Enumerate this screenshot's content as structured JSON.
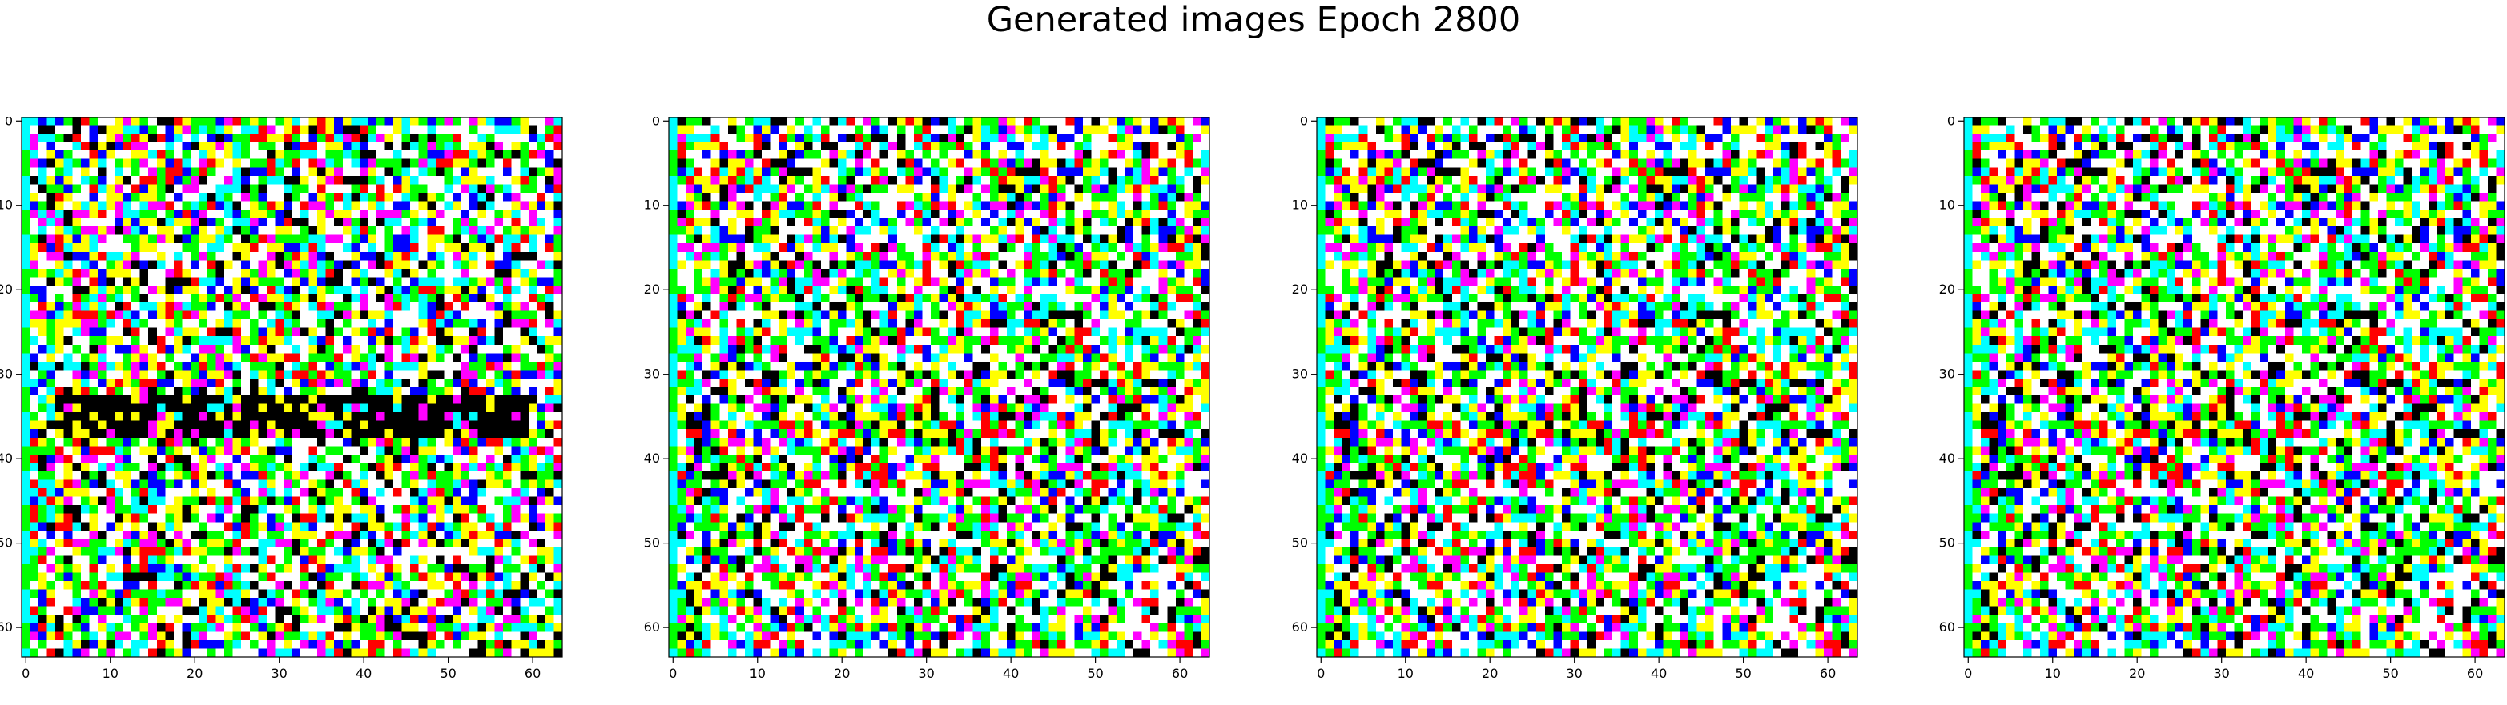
{
  "figure": {
    "title": "Generated images Epoch 2800"
  },
  "chart_data": [
    {
      "type": "heatmap",
      "subtype": "rgb-image",
      "panel_index": 0,
      "grid": [
        64,
        64
      ],
      "xlim": [
        -0.5,
        63.5
      ],
      "ylim": [
        63.5,
        -0.5
      ],
      "x_ticks": [
        0,
        10,
        20,
        30,
        40,
        50,
        60
      ],
      "y_ticks": [
        0,
        10,
        20,
        30,
        40,
        50,
        60
      ],
      "palette": [
        "#ffffff",
        "#000000",
        "#ff0000",
        "#00ff00",
        "#0000ff",
        "#00ffff",
        "#ff00ff",
        "#ffff00"
      ],
      "band_rows": [
        33,
        34,
        35,
        36,
        37
      ]
    },
    {
      "type": "heatmap",
      "subtype": "rgb-image",
      "panel_index": 1,
      "grid": [
        64,
        64
      ],
      "xlim": [
        -0.5,
        63.5
      ],
      "ylim": [
        63.5,
        -0.5
      ],
      "x_ticks": [
        0,
        10,
        20,
        30,
        40,
        50,
        60
      ],
      "y_ticks": [
        0,
        10,
        20,
        30,
        40,
        50,
        60
      ],
      "palette": [
        "#ffffff",
        "#000000",
        "#ff0000",
        "#00ff00",
        "#0000ff",
        "#00ffff",
        "#ff00ff",
        "#ffff00"
      ],
      "band_rows": []
    },
    {
      "type": "heatmap",
      "subtype": "rgb-image",
      "panel_index": 2,
      "grid": [
        64,
        64
      ],
      "xlim": [
        -0.5,
        63.5
      ],
      "ylim": [
        63.5,
        -0.5
      ],
      "x_ticks": [
        0,
        10,
        20,
        30,
        40,
        50,
        60
      ],
      "y_ticks": [
        0,
        10,
        20,
        30,
        40,
        50,
        60
      ],
      "palette": [
        "#ffffff",
        "#000000",
        "#ff0000",
        "#00ff00",
        "#0000ff",
        "#00ffff",
        "#ff00ff",
        "#ffff00"
      ],
      "band_rows": []
    },
    {
      "type": "heatmap",
      "subtype": "rgb-image",
      "panel_index": 3,
      "grid": [
        64,
        64
      ],
      "xlim": [
        -0.5,
        63.5
      ],
      "ylim": [
        63.5,
        -0.5
      ],
      "x_ticks": [
        0,
        10,
        20,
        30,
        40,
        50,
        60
      ],
      "y_ticks": [
        0,
        10,
        20,
        30,
        40,
        50,
        60
      ],
      "palette": [
        "#ffffff",
        "#000000",
        "#ff0000",
        "#00ff00",
        "#0000ff",
        "#00ffff",
        "#ff00ff",
        "#ffff00"
      ],
      "band_rows": []
    }
  ]
}
